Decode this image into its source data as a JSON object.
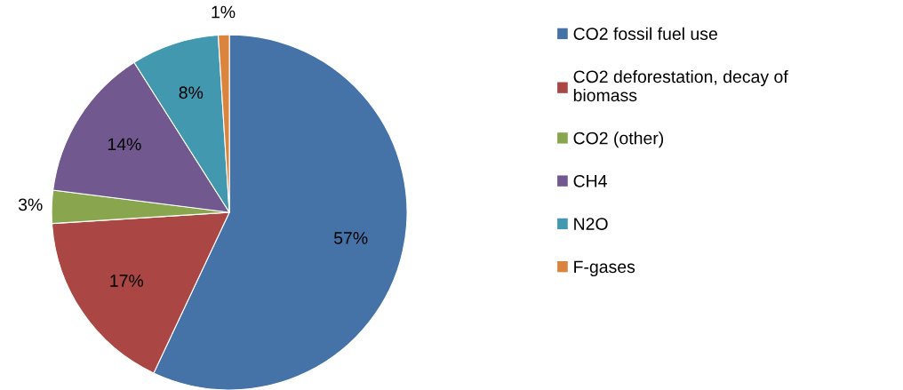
{
  "chart_data": {
    "type": "pie",
    "categories": [
      "CO2 fossil fuel use",
      "CO2 deforestation, decay of\nbiomass",
      "CO2 (other)",
      "CH4",
      "N2O",
      "F-gases"
    ],
    "values": [
      57,
      17,
      3,
      14,
      8,
      1
    ],
    "colors": [
      "#4572a7",
      "#aa4643",
      "#89a54e",
      "#71588f",
      "#4198af",
      "#db843d"
    ],
    "value_labels": [
      "57%",
      "17%",
      "3%",
      "14%",
      "8%",
      "1%"
    ],
    "legend": "right"
  }
}
